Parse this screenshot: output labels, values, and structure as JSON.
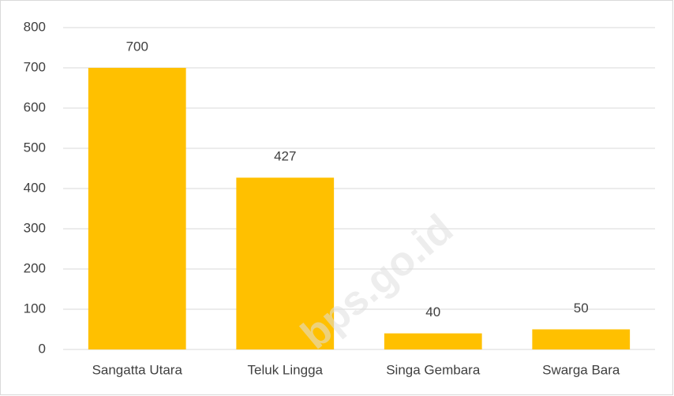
{
  "chart_data": {
    "type": "bar",
    "categories": [
      "Sangatta Utara",
      "Teluk Lingga",
      "Singa Gembara",
      "Swarga Bara"
    ],
    "values": [
      700,
      427,
      40,
      50
    ],
    "color": "#ffc000",
    "ylim": [
      0,
      800
    ],
    "yticks": [
      0,
      100,
      200,
      300,
      400,
      500,
      600,
      700,
      800
    ],
    "grid": true,
    "watermark": "bps.go.id"
  }
}
